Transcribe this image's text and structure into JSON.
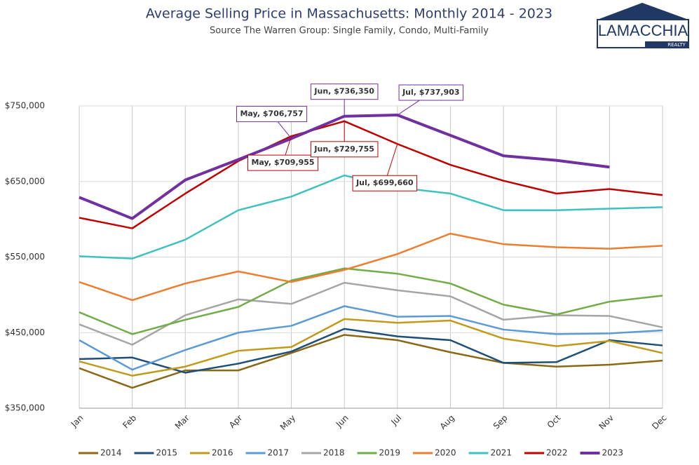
{
  "chart_data": {
    "type": "line",
    "title": "Average Selling Price in Massachusetts: Monthly 2014 - 2023",
    "subtitle": "Source The Warren Group: Single Family, Condo, Multi-Family",
    "logo": {
      "name": "LAMACCHIA",
      "tagline": "REALTY"
    },
    "categories": [
      "Jan",
      "Feb",
      "Mar",
      "Apr",
      "May",
      "Jun",
      "Jul",
      "Aug",
      "Sep",
      "Oct",
      "Nov",
      "Dec"
    ],
    "ylim": [
      350000,
      750000
    ],
    "yticks": [
      {
        "value": 350000,
        "label": "$350,000"
      },
      {
        "value": 450000,
        "label": "$450,000"
      },
      {
        "value": 550000,
        "label": "$550,000"
      },
      {
        "value": 650000,
        "label": "$650,000"
      },
      {
        "value": 750000,
        "label": "$750,000"
      }
    ],
    "grid": true,
    "legend": "bottom",
    "series": [
      {
        "name": "2014",
        "color": "#8b6914",
        "values": [
          403000,
          377000,
          400000,
          400000,
          423000,
          447000,
          440000,
          424000,
          410000,
          405000,
          407500,
          413000
        ]
      },
      {
        "name": "2015",
        "color": "#1f4e79",
        "values": [
          415000,
          417000,
          397000,
          409000,
          425000,
          455000,
          445000,
          440000,
          410000,
          411000,
          440000,
          433000
        ]
      },
      {
        "name": "2016",
        "color": "#c09b1b",
        "values": [
          412000,
          393000,
          405000,
          426000,
          431000,
          468000,
          463000,
          466000,
          442000,
          432000,
          439000,
          423000
        ]
      },
      {
        "name": "2017",
        "color": "#5b9bd5",
        "values": [
          440000,
          401000,
          427000,
          450000,
          459000,
          485000,
          471000,
          472000,
          454000,
          448000,
          449000,
          453000
        ]
      },
      {
        "name": "2018",
        "color": "#a5a5a5",
        "values": [
          461000,
          434000,
          473000,
          494000,
          488000,
          516000,
          506000,
          498000,
          467000,
          473000,
          472000,
          457000
        ]
      },
      {
        "name": "2019",
        "color": "#70ad47",
        "values": [
          477000,
          448000,
          467000,
          484000,
          519000,
          535000,
          528000,
          515000,
          487000,
          474000,
          491000,
          499000
        ]
      },
      {
        "name": "2020",
        "color": "#ed7d31",
        "values": [
          517000,
          493000,
          515000,
          531000,
          517000,
          533000,
          554000,
          581000,
          567000,
          563000,
          561000,
          565000
        ]
      },
      {
        "name": "2021",
        "color": "#3fc1c0",
        "values": [
          551000,
          548000,
          573000,
          612000,
          630000,
          658000,
          642000,
          634000,
          612000,
          612000,
          614000,
          616000
        ]
      },
      {
        "name": "2022",
        "color": "#c00000",
        "values": [
          602000,
          588000,
          634000,
          677000,
          709955,
          729755,
          699660,
          672000,
          651000,
          634000,
          640000,
          632000
        ],
        "value_labels": [
          null,
          null,
          null,
          null,
          "May, $709,955",
          "Jun, $729,755",
          "Jul, $699,660",
          null,
          null,
          null,
          null,
          null
        ]
      },
      {
        "name": "2023",
        "color": "#7030a0",
        "width": 4,
        "values": [
          629000,
          601000,
          652000,
          679000,
          706757,
          736350,
          737903,
          711000,
          684000,
          678000,
          669000,
          null
        ],
        "value_labels": [
          null,
          null,
          null,
          null,
          "May, $706,757",
          "Jun, $736,350",
          "Jul, $737,903",
          null,
          null,
          null,
          null,
          null
        ]
      }
    ]
  }
}
